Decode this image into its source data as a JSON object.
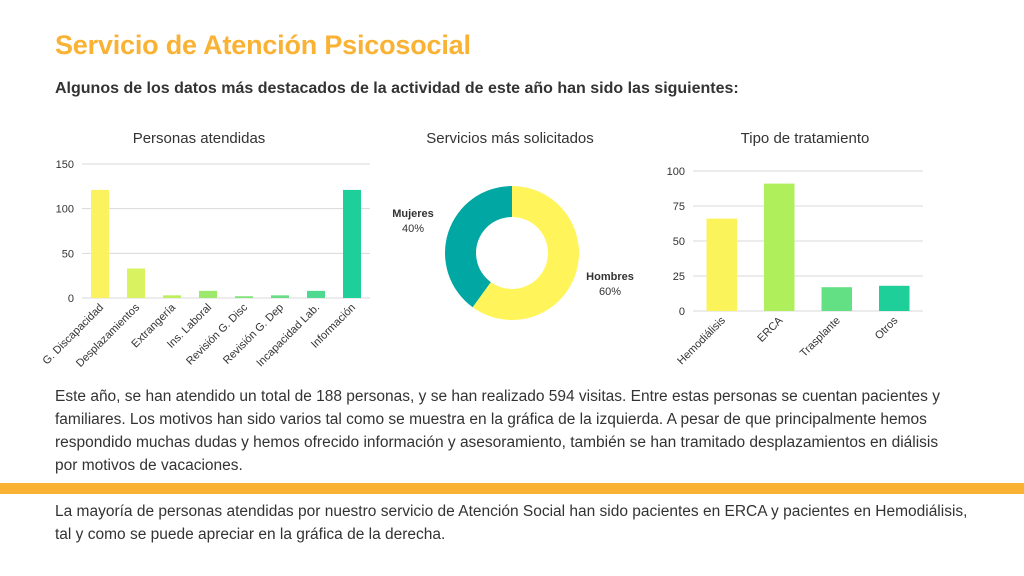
{
  "header": {
    "title": "Servicio de Atención Psicosocial",
    "subtitle": "Algunos de los datos más destacados de la actividad de este año han sido las siguientes:"
  },
  "chart_data": [
    {
      "type": "bar",
      "title": "Personas atendidas",
      "categories": [
        "G. Discapacidad",
        "Desplazamientos",
        "Extrangería",
        "Ins. Laboral",
        "Revisión G. Disc",
        "Revisión G. Dep",
        "Incapacidad Lab.",
        "Información"
      ],
      "values": [
        121,
        33,
        3,
        8,
        2,
        3,
        8,
        121
      ],
      "colors": [
        "#faf25f",
        "#d9f25f",
        "#bdef5f",
        "#9ce86a",
        "#82e47a",
        "#6bdd86",
        "#4fd88f",
        "#1fcf9a"
      ],
      "ylim": [
        0,
        150
      ],
      "yticks": [
        0,
        50,
        100,
        150
      ],
      "xlabel": "",
      "ylabel": "",
      "grid": true
    },
    {
      "type": "pie",
      "title": "Servicios más solicitados",
      "categories": [
        "Hombres",
        "Mujeres"
      ],
      "values": [
        60,
        40
      ],
      "value_labels": [
        "60%",
        "40%"
      ],
      "colors": [
        "#fff55a",
        "#00a7a3"
      ],
      "donut": true
    },
    {
      "type": "bar",
      "title": "Tipo de tratamiento",
      "categories": [
        "Hemodiálisis",
        "ERCA",
        "Trasplante",
        "Otros"
      ],
      "values": [
        66,
        91,
        17,
        18
      ],
      "colors": [
        "#fbf35a",
        "#b0ef5c",
        "#63df84",
        "#1fcf9a"
      ],
      "ylim": [
        0,
        100
      ],
      "yticks": [
        0,
        25,
        50,
        75,
        100
      ],
      "xlabel": "",
      "ylabel": "",
      "grid": true
    }
  ],
  "body": {
    "paragraph1": "Este año, se han atendido un total de 188 personas, y se han realizado 594 visitas. Entre estas personas se cuentan pacientes y familiares. Los motivos han sido varios tal como se muestra en la gráfica de la izquierda. A pesar de que principalmente hemos respondido muchas dudas y hemos ofrecido información y asesoramiento, también se han tramitado desplazamientos en diálisis por motivos de vacaciones.",
    "paragraph2": "La mayoría de personas atendidas por nuestro servicio de Atención Social han sido pacientes en ERCA y pacientes en Hemodiálisis, tal y como se puede apreciar en la gráfica de la derecha."
  },
  "colors": {
    "accent": "#f9b233",
    "text": "#333333",
    "grid": "#d9d9d9"
  }
}
